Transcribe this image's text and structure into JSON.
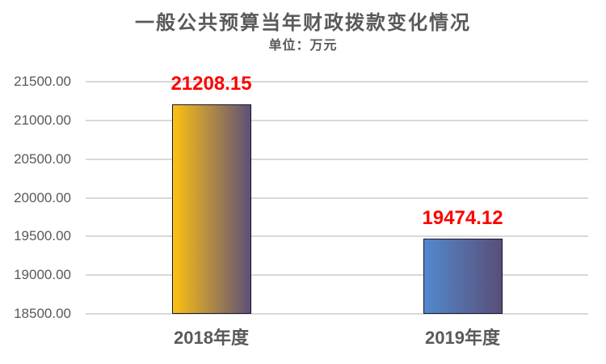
{
  "chart_data": {
    "type": "bar",
    "title": "一般公共预算当年财政拨款变化情况",
    "subtitle": "单位：万元",
    "categories": [
      "2018年度",
      "2019年度"
    ],
    "values": [
      21208.15,
      19474.12
    ],
    "data_labels": [
      "21208.15",
      "19474.12"
    ],
    "ylim": [
      18500,
      21500
    ],
    "ytick_step": 500,
    "ytick_labels": [
      "21500.00",
      "21000.00",
      "20500.00",
      "20000.00",
      "19500.00",
      "19000.00",
      "18500.00"
    ],
    "xlabel": "",
    "ylabel": "",
    "grid": true,
    "legend": "none",
    "styles": {
      "background": "#FFFFFF",
      "title_color": "#595959",
      "axis_label_color": "#595959",
      "data_label_color": "#FF0000",
      "gridline_color": "#D9D9D9",
      "bar_border_color": "#1A1433",
      "bar_gradients": [
        {
          "from": "#FDC113",
          "to": "#5D5078"
        },
        {
          "from": "#5289CE",
          "to": "#5A4E77"
        }
      ]
    }
  }
}
